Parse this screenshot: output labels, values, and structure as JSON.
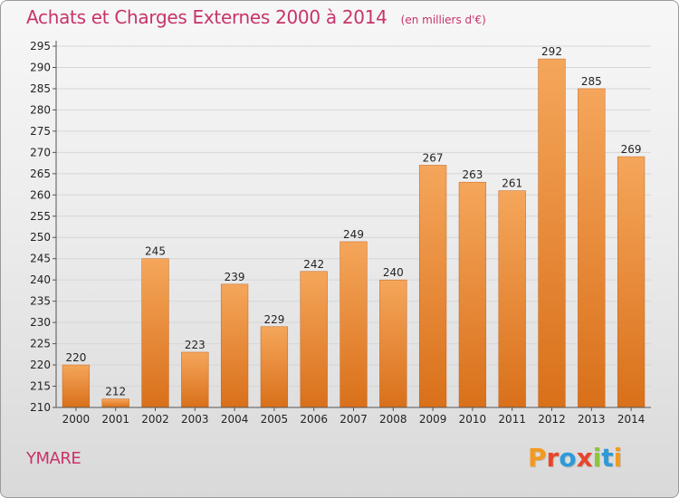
{
  "header": {
    "title": "Achats et Charges Externes 2000 à 2014",
    "unit": "(en milliers d'€)"
  },
  "footer": {
    "commune": "YMARE",
    "logo_text": "Proxiti",
    "logo_colors": [
      "#f29a1f",
      "#e8452c",
      "#2f9ad8",
      "#e8452c",
      "#8cc63f",
      "#2f9ad8",
      "#f29a1f"
    ]
  },
  "colors": {
    "title": "#c8336a",
    "bar_light": "#f5a65b",
    "bar_dark": "#d9701a",
    "grid": "#d6d6d6"
  },
  "chart_data": {
    "type": "bar",
    "title": "Achats et Charges Externes 2000 à 2014",
    "xlabel": "",
    "ylabel": "",
    "categories": [
      "2000",
      "2001",
      "2002",
      "2003",
      "2004",
      "2005",
      "2006",
      "2007",
      "2008",
      "2009",
      "2010",
      "2011",
      "2012",
      "2013",
      "2014"
    ],
    "values": [
      220,
      212,
      245,
      223,
      239,
      229,
      242,
      249,
      240,
      267,
      263,
      261,
      292,
      285,
      269
    ],
    "ylim": [
      210,
      295
    ],
    "ytick_step": 5,
    "grid": true,
    "legend": "none"
  }
}
